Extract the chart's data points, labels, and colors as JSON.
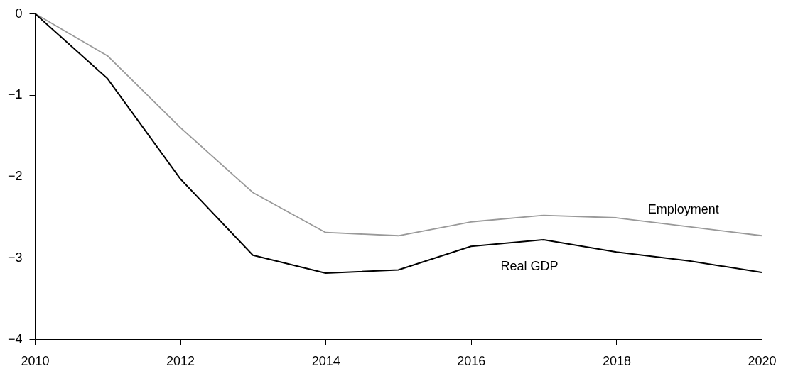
{
  "chart_data": {
    "type": "line",
    "x": [
      2010,
      2011,
      2012,
      2013,
      2014,
      2015,
      2016,
      2017,
      2018,
      2019,
      2020
    ],
    "series": [
      {
        "name": "Employment",
        "color": "#999999",
        "values": [
          0,
          -0.52,
          -1.4,
          -2.2,
          -2.69,
          -2.73,
          -2.56,
          -2.48,
          -2.51,
          -2.62,
          -2.73
        ]
      },
      {
        "name": "Real GDP",
        "color": "#000000",
        "values": [
          0,
          -0.8,
          -2.03,
          -2.97,
          -3.19,
          -3.15,
          -2.86,
          -2.78,
          -2.93,
          -3.04,
          -3.18
        ]
      }
    ],
    "xlim": [
      2010,
      2020
    ],
    "xticks": [
      2010,
      2012,
      2014,
      2016,
      2018,
      2020
    ],
    "ylim": [
      -4,
      0
    ],
    "yticks": [
      0,
      -1,
      -2,
      -3,
      -4
    ],
    "grid": false,
    "marker": "none",
    "line_style": "solid"
  }
}
